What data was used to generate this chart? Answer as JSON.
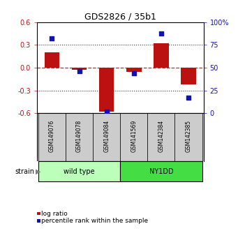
{
  "title": "GDS2826 / 35b1",
  "samples": [
    "GSM149076",
    "GSM149078",
    "GSM149084",
    "GSM141569",
    "GSM142384",
    "GSM142385"
  ],
  "log_ratios": [
    0.2,
    -0.03,
    -0.58,
    -0.05,
    0.32,
    -0.22
  ],
  "percentile_ranks": [
    82,
    46,
    2,
    44,
    88,
    17
  ],
  "groups": [
    {
      "label": "wild type",
      "start": 0,
      "end": 3,
      "color": "#bbffbb"
    },
    {
      "label": "NY1DD",
      "start": 3,
      "end": 6,
      "color": "#44dd44"
    }
  ],
  "ylim_left": [
    -0.6,
    0.6
  ],
  "ylim_right": [
    0,
    100
  ],
  "yticks_left": [
    -0.6,
    -0.3,
    0.0,
    0.3,
    0.6
  ],
  "yticks_right": [
    0,
    25,
    50,
    75,
    100
  ],
  "bar_color": "#bb1111",
  "dot_color": "#1111bb",
  "zero_line_color": "#cc2222",
  "dotted_line_color": "#333333",
  "legend_bar_label": "log ratio",
  "legend_dot_label": "percentile rank within the sample",
  "strain_label": "strain",
  "background_color": "#ffffff",
  "cell_color": "#cccccc",
  "border_color": "#000000"
}
